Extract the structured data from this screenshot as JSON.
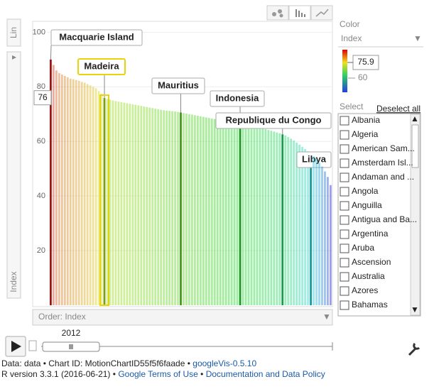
{
  "chart_data": {
    "type": "bar",
    "tabs": [
      "Lin",
      "Index"
    ],
    "y_label": "Index",
    "ylim": [
      0,
      104
    ],
    "yticks": [
      20,
      40,
      60,
      80,
      100
    ],
    "categories": [
      "Macquarie Island",
      null,
      null,
      null,
      null,
      null,
      null,
      null,
      null,
      null,
      null,
      null,
      null,
      null,
      null,
      null,
      null,
      null,
      null,
      "Madeira",
      null,
      null,
      null,
      null,
      null,
      null,
      null,
      null,
      null,
      null,
      null,
      null,
      null,
      null,
      null,
      null,
      null,
      null,
      null,
      null,
      null,
      null,
      null,
      null,
      null,
      null,
      "Mauritius",
      null,
      null,
      null,
      null,
      null,
      null,
      null,
      null,
      null,
      null,
      null,
      null,
      null,
      null,
      null,
      null,
      null,
      null,
      null,
      null,
      "Indonesia",
      null,
      null,
      null,
      null,
      null,
      null,
      null,
      null,
      null,
      null,
      null,
      null,
      null,
      null,
      "Republique du Congo",
      null,
      null,
      null,
      null,
      null,
      null,
      null,
      null,
      null,
      "Libya",
      null,
      null,
      null,
      null,
      null,
      null,
      null
    ],
    "values": [
      90,
      88,
      86,
      85,
      84.5,
      84,
      83.5,
      83,
      82.8,
      82.5,
      82.2,
      81.8,
      81.5,
      81,
      80.5,
      80,
      79.5,
      78.5,
      77.5,
      75.9,
      75.6,
      75.3,
      75,
      74.8,
      74.6,
      74.4,
      74.2,
      74,
      73.8,
      73.6,
      73.4,
      73.2,
      73,
      72.8,
      72.6,
      72.4,
      72.2,
      72,
      71.8,
      71.6,
      71.4,
      71.3,
      71.2,
      71.1,
      71,
      70.8,
      70.6,
      70.4,
      70.2,
      70,
      69.8,
      69.6,
      69.4,
      69.2,
      69,
      68.8,
      68.6,
      68.4,
      68.2,
      68,
      67.8,
      67.6,
      67.4,
      67.2,
      67,
      66.8,
      66.6,
      66.4,
      66.2,
      66,
      65.8,
      65.6,
      65.4,
      65.2,
      65,
      64.8,
      64.5,
      64.2,
      63.9,
      63.6,
      63.3,
      63,
      62.6,
      62.2,
      61.6,
      61,
      60.3,
      59.6,
      58.8,
      58,
      57.2,
      56.4,
      55.5,
      54.5,
      53.5,
      52.2,
      50.8,
      49,
      47,
      44
    ],
    "highlight_color": "#e8d40c",
    "hover_value": 76,
    "order_label": "Order: Index",
    "year": "2012",
    "color_panel": {
      "title": "Color",
      "dropdown": "Index",
      "value_label": "75.9",
      "tick": "60"
    },
    "select_panel": {
      "title": "Select",
      "deselect": "Deselect all",
      "items": [
        "Albania",
        "Algeria",
        "American Sam...",
        "Amsterdam Isl...",
        "Andaman and ...",
        "Angola",
        "Anguilla",
        "Antigua and Ba...",
        "Argentina",
        "Aruba",
        "Ascension",
        "Australia",
        "Azores",
        "Bahamas"
      ]
    },
    "footer": {
      "separator": "•",
      "line1": [
        "Data: data",
        "Chart ID: MotionChartID55f5f6faade",
        "googleVis-0.5.10"
      ],
      "line2": [
        "R version 3.3.1 (2016-06-21)",
        "Google Terms of Use",
        "Documentation and Data Policy"
      ]
    }
  }
}
